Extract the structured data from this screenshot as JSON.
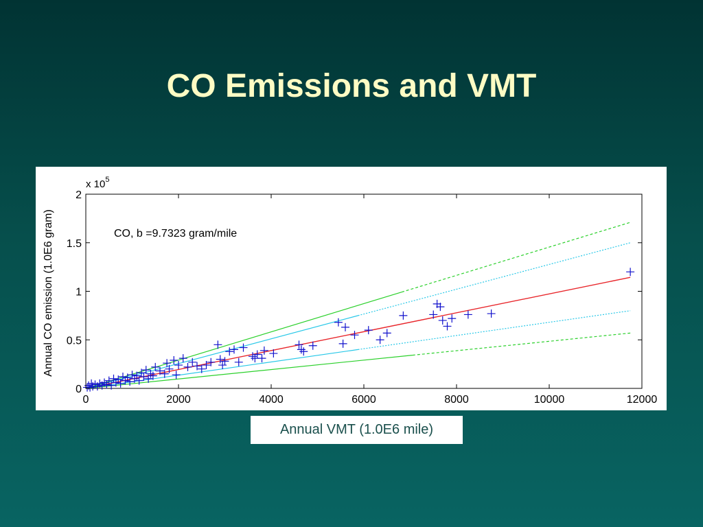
{
  "slide": {
    "title": "CO Emissions and VMT",
    "x_caption": "Annual VMT (1.0E6 mile)"
  },
  "chart_data": {
    "type": "scatter",
    "title": "",
    "annotation": "CO, b =9.7323 gram/mile",
    "ylabel": "Annual CO emission (1.0E6 gram)",
    "xlabel": "Annual VMT (1.0E6 mile)",
    "y_multiplier_label": "x 10",
    "y_multiplier_exponent": "5",
    "xlim": [
      0,
      12000
    ],
    "ylim": [
      0,
      200000
    ],
    "x_ticks": [
      0,
      2000,
      4000,
      6000,
      8000,
      10000,
      12000
    ],
    "x_tick_labels": [
      "0",
      "2000",
      "4000",
      "6000",
      "8000",
      "10000",
      "12000"
    ],
    "y_ticks": [
      0,
      50000,
      100000,
      150000,
      200000
    ],
    "y_tick_labels": [
      "0",
      "0.5",
      "1",
      "1.5",
      "2"
    ],
    "grid": false,
    "colors": {
      "points": "#1010cc",
      "fit": "#e8252a",
      "confidence": "#28c8e8",
      "prediction": "#2ad02a"
    },
    "series": [
      {
        "type": "scatter",
        "marker": "+",
        "x": [
          30,
          60,
          90,
          120,
          150,
          200,
          250,
          300,
          350,
          400,
          450,
          500,
          550,
          600,
          650,
          700,
          750,
          800,
          850,
          900,
          950,
          1000,
          1050,
          1100,
          1150,
          1200,
          1250,
          1300,
          1350,
          1400,
          1450,
          1500,
          1600,
          1700,
          1750,
          1800,
          1900,
          1950,
          2000,
          2100,
          2200,
          2300,
          2400,
          2500,
          2600,
          2700,
          2850,
          2900,
          2950,
          3000,
          3100,
          3200,
          3300,
          3400,
          3600,
          3650,
          3700,
          3800,
          3850,
          4050,
          4600,
          4650,
          4700,
          4900,
          5450,
          5550,
          5600,
          5800,
          6100,
          6350,
          6500,
          6850,
          7500,
          7580,
          7650,
          7700,
          7800,
          7900,
          8250,
          8750,
          11750
        ],
        "y": [
          1000,
          3000,
          1000,
          5000,
          2000,
          4000,
          2000,
          5000,
          3000,
          6000,
          4000,
          8000,
          3000,
          10000,
          6000,
          9000,
          5000,
          12000,
          8000,
          11000,
          7000,
          14000,
          10000,
          13000,
          8000,
          16000,
          12000,
          19000,
          10000,
          15000,
          13000,
          22000,
          18000,
          15000,
          26000,
          20000,
          29000,
          14000,
          24000,
          31000,
          22000,
          27000,
          23000,
          20000,
          24000,
          27000,
          45000,
          30000,
          24000,
          28000,
          38000,
          40000,
          27000,
          42000,
          33000,
          31000,
          35000,
          31000,
          39000,
          36000,
          45000,
          40000,
          38000,
          44000,
          68000,
          46000,
          63000,
          55000,
          60000,
          50000,
          57000,
          75000,
          76000,
          87000,
          84000,
          70000,
          64000,
          72000,
          76000,
          77000,
          120000
        ]
      },
      {
        "type": "line",
        "name": "",
        "x": [
          0,
          11750
        ],
        "y": [
          0,
          114360
        ]
      },
      {
        "type": "line",
        "name": "",
        "x": [
          0,
          11750
        ],
        "y": [
          0,
          150000
        ]
      },
      {
        "type": "line",
        "name": "",
        "x": [
          0,
          11750
        ],
        "y": [
          0,
          80000
        ]
      },
      {
        "type": "line",
        "name": "",
        "x": [
          0,
          11750
        ],
        "y": [
          0,
          171000
        ]
      },
      {
        "type": "line",
        "name": "",
        "x": [
          0,
          11750
        ],
        "y": [
          0,
          57000
        ]
      }
    ]
  }
}
